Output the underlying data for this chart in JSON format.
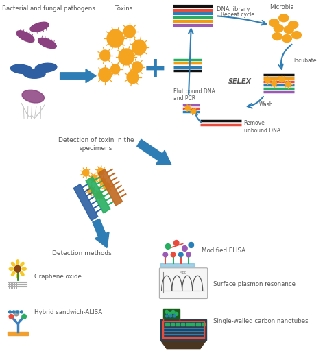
{
  "bg_color": "#ffffff",
  "labels": {
    "bacteria": "Bacterial and fungal pathogens",
    "toxins": "Toxins",
    "dna_lib": "DNA library",
    "microbia": "Microbia",
    "repeat": "Repeat cycle",
    "selex": "SELEX",
    "elut": "Elut bound DNA\nand PCR",
    "incubate": "Incubate",
    "wash": "Wash",
    "remove": "Remove\nunbound DNA",
    "detection_toxin": "Detection of toxin in the\nspecimens",
    "detection_methods": "Detection methods",
    "modified_elisa": "Modified ELISA",
    "graphene": "Graphene oxide",
    "hybrid": "Hybrid sandwich-ALISA",
    "spr": "Surface plasmon resonance",
    "swcnt": "Single-walled carbon nanotubes"
  },
  "arrow_color": "#2e7db5",
  "text_color": "#555555",
  "toxin_color": "#f5a41f",
  "bacteria_purple": "#8b4080",
  "bacteria_blue": "#2e5fa3",
  "plus_color": "#2e7db5",
  "stripe_colors": [
    "#111111",
    "#e74c3c",
    "#2980b9",
    "#27ae60",
    "#f39c12",
    "#9b59b6",
    "#e67e22"
  ],
  "dna_stripe_colors_top": [
    "#111111",
    "#e74c3c",
    "#2980b9",
    "#27ae60",
    "#f39c12",
    "#9b59b6"
  ],
  "dna_stripe_colors_left": [
    "#27ae60",
    "#f39c12",
    "#2980b9",
    "#111111"
  ]
}
